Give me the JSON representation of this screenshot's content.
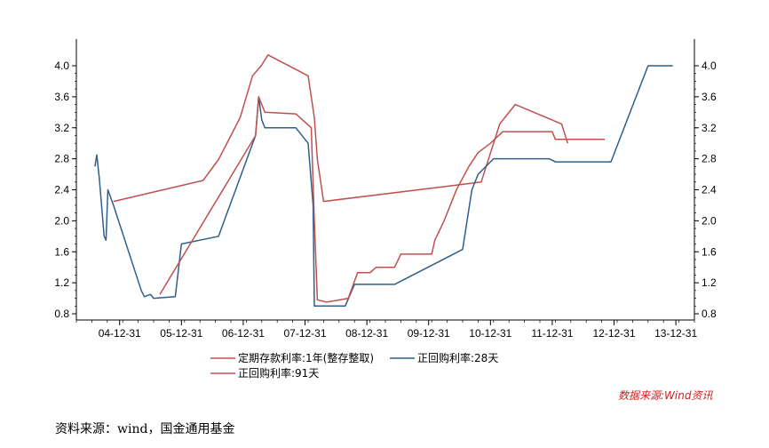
{
  "chart_data": {
    "type": "line",
    "x_tick_labels": [
      "04-12-31",
      "05-12-31",
      "06-12-31",
      "07-12-31",
      "08-12-31",
      "09-12-31",
      "10-12-31",
      "11-12-31",
      "12-12-31",
      "13-12-31"
    ],
    "ylim": [
      0.8,
      4.0
    ],
    "y_ticks": [
      "0.8",
      "1.2",
      "1.6",
      "2.0",
      "2.4",
      "2.8",
      "3.2",
      "3.6",
      "4.0"
    ],
    "y_ticks_right": [
      "0.8",
      "1.2",
      "1.6",
      "2.0",
      "2.4",
      "2.8",
      "3.2",
      "3.6",
      "4.0"
    ],
    "grid": false,
    "legend_position": "bottom",
    "series": [
      {
        "name": "定期存款利率:1年(整存整取)",
        "color": "#c0504d",
        "points": [
          [
            2004.85,
            2.25
          ],
          [
            2006.3,
            2.52
          ],
          [
            2006.55,
            2.79
          ],
          [
            2006.9,
            3.33
          ],
          [
            2007.1,
            3.87
          ],
          [
            2007.25,
            4.01
          ],
          [
            2007.35,
            4.14
          ],
          [
            2008.0,
            3.87
          ],
          [
            2008.1,
            3.33
          ],
          [
            2008.15,
            2.79
          ],
          [
            2008.25,
            2.25
          ],
          [
            2010.8,
            2.5
          ],
          [
            2011.1,
            3.25
          ],
          [
            2011.35,
            3.5
          ],
          [
            2012.1,
            3.25
          ],
          [
            2012.2,
            3.0
          ]
        ]
      },
      {
        "name": "正回购利率:28天",
        "color": "#2f5f8a",
        "points": [
          [
            2004.55,
            2.7
          ],
          [
            2004.58,
            2.85
          ],
          [
            2004.62,
            2.55
          ],
          [
            2004.7,
            1.8
          ],
          [
            2004.73,
            1.75
          ],
          [
            2004.76,
            2.4
          ],
          [
            2004.85,
            2.2
          ],
          [
            2005.3,
            1.1
          ],
          [
            2005.35,
            1.02
          ],
          [
            2005.45,
            1.05
          ],
          [
            2005.5,
            1.0
          ],
          [
            2005.85,
            1.02
          ],
          [
            2005.95,
            1.7
          ],
          [
            2006.55,
            1.8
          ],
          [
            2007.15,
            3.1
          ],
          [
            2007.2,
            3.6
          ],
          [
            2007.25,
            3.3
          ],
          [
            2007.3,
            3.2
          ],
          [
            2007.8,
            3.2
          ],
          [
            2008.0,
            3.0
          ],
          [
            2008.08,
            2.2
          ],
          [
            2008.1,
            0.9
          ],
          [
            2008.6,
            0.9
          ],
          [
            2008.75,
            1.18
          ],
          [
            2009.4,
            1.18
          ],
          [
            2010.5,
            1.63
          ],
          [
            2010.65,
            2.4
          ],
          [
            2010.75,
            2.6
          ],
          [
            2011.0,
            2.8
          ],
          [
            2011.9,
            2.8
          ],
          [
            2012.0,
            2.76
          ],
          [
            2012.9,
            2.76
          ],
          [
            2013.5,
            4.0
          ],
          [
            2013.9,
            4.0
          ]
        ]
      },
      {
        "name": "正回购利率:91天",
        "color": "#c0504d",
        "points": [
          [
            2005.6,
            1.05
          ],
          [
            2007.15,
            3.1
          ],
          [
            2007.2,
            3.6
          ],
          [
            2007.3,
            3.4
          ],
          [
            2007.8,
            3.38
          ],
          [
            2008.05,
            3.2
          ],
          [
            2008.1,
            2.0
          ],
          [
            2008.15,
            0.98
          ],
          [
            2008.3,
            0.95
          ],
          [
            2008.65,
            1.0
          ],
          [
            2008.8,
            1.33
          ],
          [
            2009.0,
            1.33
          ],
          [
            2009.1,
            1.4
          ],
          [
            2009.4,
            1.4
          ],
          [
            2009.5,
            1.57
          ],
          [
            2010.0,
            1.57
          ],
          [
            2010.05,
            1.75
          ],
          [
            2010.2,
            2.0
          ],
          [
            2010.4,
            2.4
          ],
          [
            2010.6,
            2.7
          ],
          [
            2010.75,
            2.88
          ],
          [
            2010.95,
            3.0
          ],
          [
            2011.15,
            3.15
          ],
          [
            2011.95,
            3.15
          ],
          [
            2012.0,
            3.05
          ],
          [
            2012.8,
            3.05
          ]
        ]
      }
    ]
  },
  "source_note": "资料来源：wind，国金通用基金",
  "watermark": "数据来源:Wind资讯"
}
